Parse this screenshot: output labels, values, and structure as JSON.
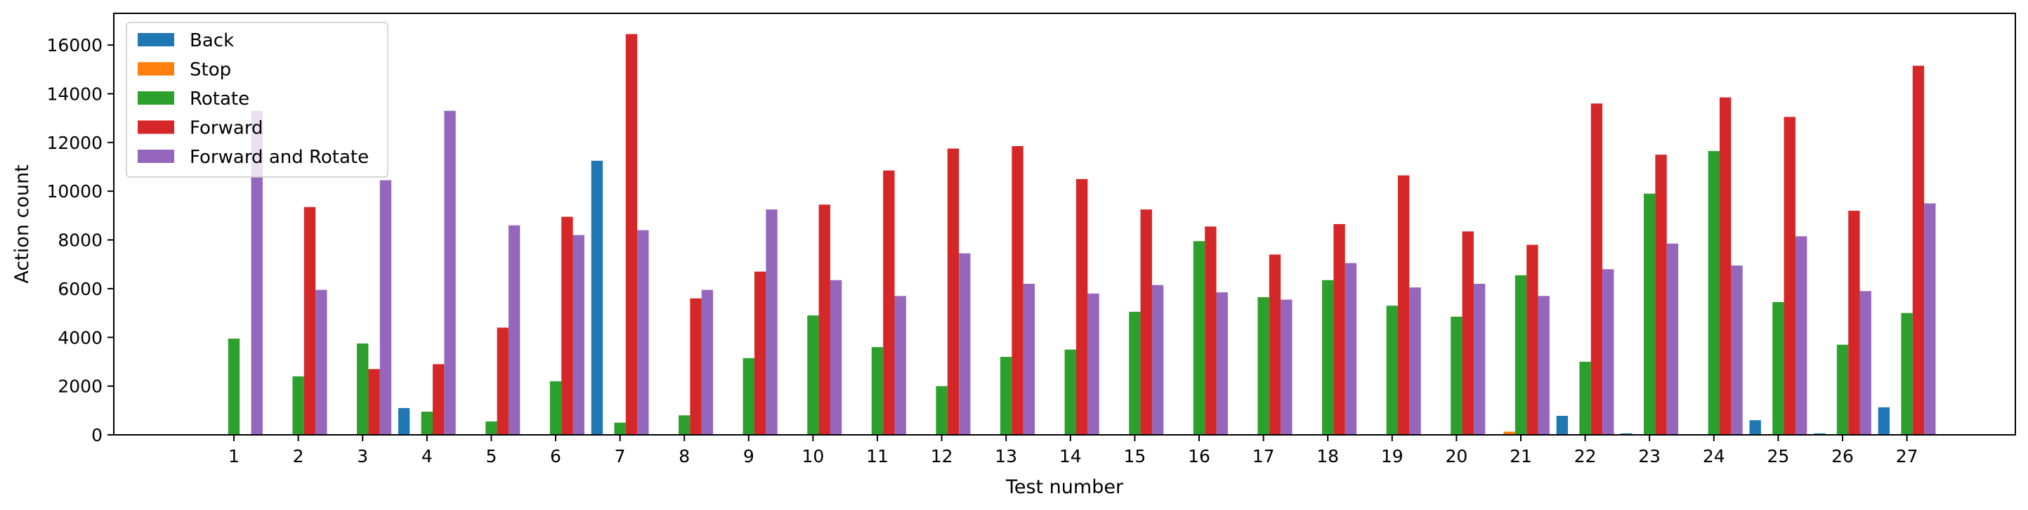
{
  "chart_data": {
    "type": "bar",
    "xlabel": "Test number",
    "ylabel": "Action count",
    "ylim": [
      0,
      17300
    ],
    "yticks": [
      0,
      2000,
      4000,
      6000,
      8000,
      10000,
      12000,
      14000,
      16000
    ],
    "legend_position": "top-left",
    "categories": [
      "1",
      "2",
      "3",
      "4",
      "5",
      "6",
      "7",
      "8",
      "9",
      "10",
      "11",
      "12",
      "13",
      "14",
      "15",
      "16",
      "17",
      "18",
      "19",
      "20",
      "21",
      "22",
      "23",
      "24",
      "25",
      "26",
      "27"
    ],
    "series": [
      {
        "name": "Back",
        "color": "#1f77b4",
        "values": [
          0,
          0,
          0,
          1100,
          0,
          0,
          11250,
          0,
          0,
          0,
          0,
          0,
          0,
          0,
          0,
          0,
          0,
          0,
          0,
          0,
          0,
          780,
          60,
          0,
          600,
          60,
          1130
        ]
      },
      {
        "name": "Stop",
        "color": "#ff7f0e",
        "values": [
          0,
          0,
          0,
          0,
          0,
          0,
          0,
          0,
          0,
          0,
          0,
          0,
          0,
          0,
          0,
          0,
          0,
          0,
          0,
          0,
          130,
          0,
          0,
          0,
          0,
          0,
          0
        ]
      },
      {
        "name": "Rotate",
        "color": "#2ca02c",
        "values": [
          3950,
          2400,
          3750,
          950,
          550,
          2200,
          500,
          800,
          3150,
          4900,
          3600,
          2000,
          3200,
          3500,
          5050,
          7950,
          5650,
          6350,
          5300,
          4850,
          6550,
          3000,
          9900,
          11650,
          5450,
          3700,
          5000
        ]
      },
      {
        "name": "Forward",
        "color": "#d62728",
        "values": [
          0,
          9350,
          2700,
          2900,
          4400,
          8950,
          16450,
          5600,
          6700,
          9450,
          10850,
          11750,
          11850,
          10500,
          9250,
          8550,
          7400,
          8650,
          10650,
          8350,
          7800,
          13600,
          11500,
          13850,
          13050,
          9200,
          15150
        ]
      },
      {
        "name": "Forward and Rotate",
        "color": "#9467bd",
        "values": [
          13300,
          5950,
          10450,
          13300,
          8600,
          8200,
          8400,
          5950,
          9250,
          6350,
          5700,
          7450,
          6200,
          5800,
          6150,
          5850,
          5550,
          7050,
          6050,
          6200,
          5700,
          6800,
          7850,
          6950,
          8150,
          5900,
          9500
        ]
      }
    ]
  }
}
